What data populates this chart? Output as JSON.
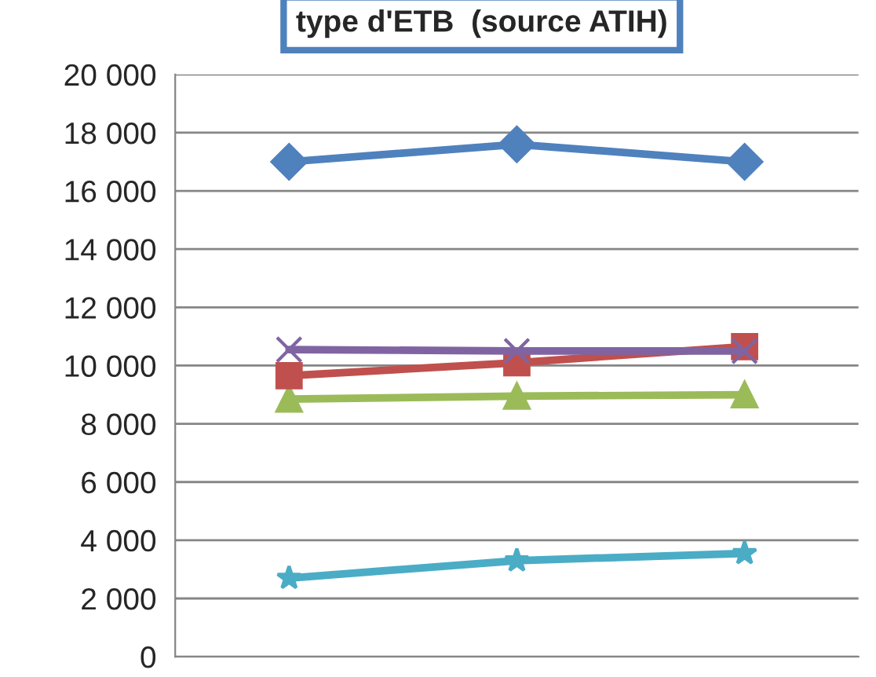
{
  "chart_data": {
    "type": "line",
    "title": "type d'ETB  (source ATIH)",
    "categories": [
      null,
      null,
      null
    ],
    "series": [
      {
        "color": "#4f81bd",
        "marker": "diamond",
        "values": [
          17000,
          17600,
          17000
        ]
      },
      {
        "color": "#8064a2",
        "marker": "cross",
        "values": [
          10550,
          10500,
          10500
        ]
      },
      {
        "color": "#c0504d",
        "marker": "square",
        "values": [
          9650,
          10100,
          10650
        ]
      },
      {
        "color": "#9bbb59",
        "marker": "triangle",
        "values": [
          8850,
          8950,
          9000
        ]
      },
      {
        "color": "#4bacc6",
        "marker": "star",
        "values": [
          2700,
          3300,
          3550
        ]
      }
    ],
    "ylim": [
      0,
      20000
    ],
    "yticks": [
      {
        "value": 0,
        "label": "0"
      },
      {
        "value": 2000,
        "label": "2 000"
      },
      {
        "value": 4000,
        "label": "4 000"
      },
      {
        "value": 6000,
        "label": "6 000"
      },
      {
        "value": 8000,
        "label": "8 000"
      },
      {
        "value": 10000,
        "label": "10 000"
      },
      {
        "value": 12000,
        "label": "12 000"
      },
      {
        "value": 14000,
        "label": "14 000"
      },
      {
        "value": 16000,
        "label": "16 000"
      },
      {
        "value": 18000,
        "label": "18 000"
      },
      {
        "value": 20000,
        "label": "20 000"
      }
    ],
    "grid": "y",
    "line_style": "solid",
    "legend": false
  }
}
